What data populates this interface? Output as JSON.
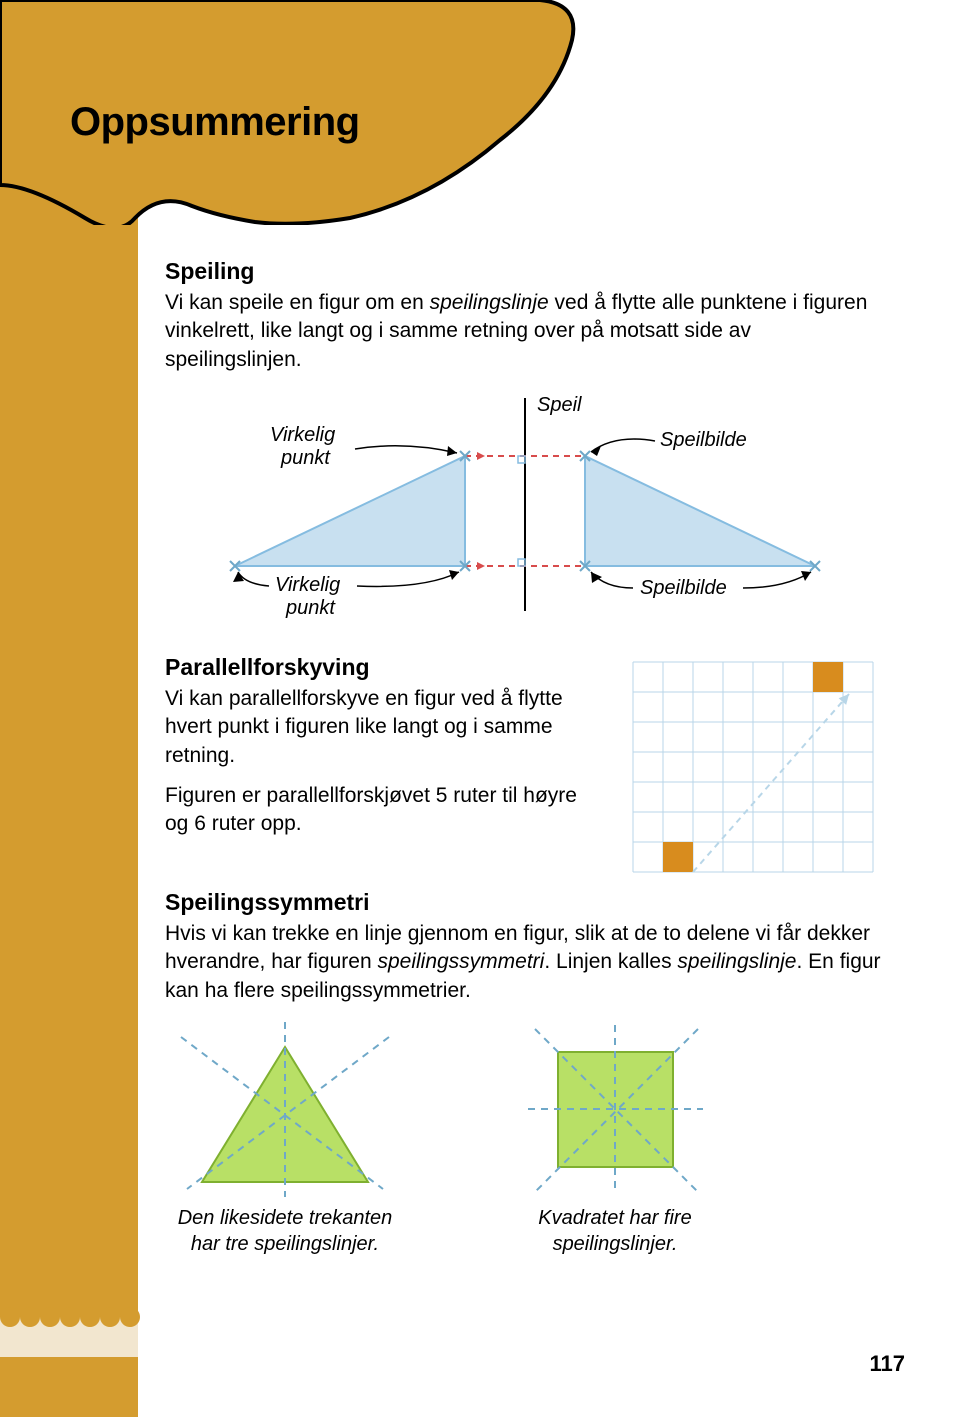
{
  "page_title": "Oppsummering",
  "page_number": "117",
  "colors": {
    "sidebar": "#d49c2f",
    "orange_square": "#d88c1e",
    "triangle_line": "#85bce0",
    "triangle_fill": "#c8e0f0",
    "dashed_red": "#d84c4c",
    "grid_line": "#b8d6e8",
    "sym_fill": "#b8e066",
    "sym_dash": "#6fa8c8",
    "text": "#000000"
  },
  "sections": {
    "speiling": {
      "title": "Speiling",
      "text_pre": "Vi kan speile en figur om en ",
      "text_italic1": "speilingslinje",
      "text_post": " ved å flytte alle punktene i figuren vinkelrett, like langt og i samme retning over på motsatt side av speilingslinjen.",
      "diagram": {
        "label_speil": "Speil",
        "label_virkelig_punkt": "Virkelig punkt",
        "label_speilbilde": "Speilbilde",
        "label_virkelig_punkt2": "Virkelig punkt",
        "label_speilbilde2": "Speilbilde"
      }
    },
    "parallell": {
      "title": "Parallellforskyving",
      "text1": "Vi kan parallellforskyve en figur ved å flytte hvert punkt i figuren like langt og i samme retning.",
      "text2": "Figuren er parallellforskjøvet 5 ruter til høyre og 6 ruter opp.",
      "grid": {
        "cols": 8,
        "rows": 7,
        "cell": 30,
        "square_size": 1,
        "square1": {
          "col": 1,
          "row": 6
        },
        "square2": {
          "col": 6,
          "row": 0
        }
      }
    },
    "symmetri": {
      "title": "Speilingssymmetri",
      "text_pre": "Hvis vi kan trekke en linje gjennom en figur, slik at de to delene vi får dekker hverandre, har figuren ",
      "text_italic1": "speilingssymmetri",
      "text_mid": ". Linjen kalles ",
      "text_italic2": "speilingslinje",
      "text_post": ". En figur kan ha flere speilingssymmetrier.",
      "triangle_caption": "Den likesidete trekanten har tre speilingslinjer.",
      "square_caption": "Kvadratet har fire speilingslinjer."
    }
  }
}
